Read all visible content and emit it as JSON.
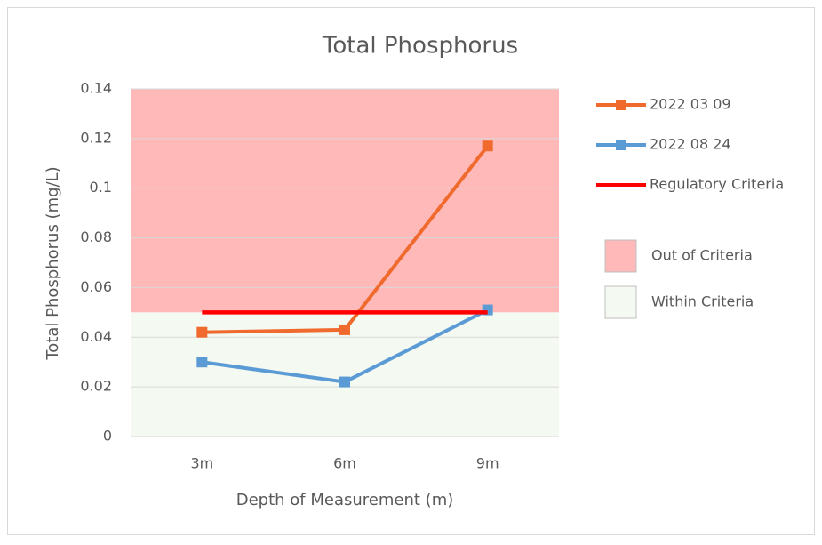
{
  "chart_data": {
    "type": "line",
    "title": "Total Phosphorus",
    "x_label": "Depth of Measurement (m)",
    "y_label": "Total Phosphorus (mg/L)",
    "categories": [
      "3m",
      "6m",
      "9m"
    ],
    "series": [
      {
        "name": "2022 03 09",
        "color": "#f06a2e",
        "marker": "square",
        "values": [
          0.042,
          0.043,
          0.117
        ]
      },
      {
        "name": "2022 08 24",
        "color": "#5b9bd5",
        "marker": "square",
        "values": [
          0.03,
          0.022,
          0.051
        ]
      },
      {
        "name": "Regulatory Criteria",
        "color": "#ff0000",
        "values": [
          0.05,
          0.05,
          0.05
        ]
      }
    ],
    "bands": [
      {
        "name": "Out of Criteria",
        "color": "#ffb9b9",
        "range": [
          0.05,
          0.14
        ]
      },
      {
        "name": "Within Criteria",
        "color": "#f4f9f1",
        "range": [
          0,
          0.05
        ]
      }
    ],
    "ylim": [
      0,
      0.14
    ],
    "yticks": [
      0,
      0.02,
      0.04,
      0.06,
      0.08,
      0.1,
      0.12,
      0.14
    ],
    "grid": true,
    "legend": "right"
  }
}
